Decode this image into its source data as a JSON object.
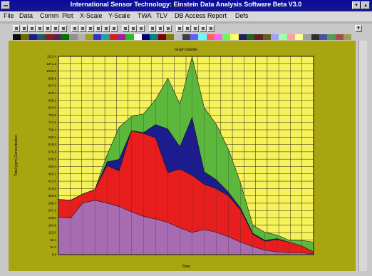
{
  "window": {
    "title": "International Sensor Technology: Einstein Data Analysis Software Beta V3.0",
    "min_glyph": "▾",
    "max_glyph": "▴"
  },
  "menu": [
    "File",
    "Data",
    "Comm",
    "Plot",
    "X-Scale",
    "Y-Scale",
    "TWA",
    "TLV",
    "DB Access",
    "Report",
    "Defs"
  ],
  "toolbar": {
    "icons": [
      "new-icon",
      "open-icon",
      "save-icon",
      "print-icon",
      "cut-icon",
      "copy-icon",
      "paste-icon",
      "chart-icon",
      "graph-icon",
      "zoom-in-icon",
      "zoom-out-icon",
      "refresh-icon",
      "grid-icon",
      "table-icon",
      "pointer-icon",
      "text-icon",
      "scale-icon",
      "window-icon",
      "list-icon",
      "help-icon",
      "export-icon",
      "import-icon",
      "config-icon",
      "exit-icon"
    ]
  },
  "palette_colors": [
    "#0a0a0a",
    "#6a6a00",
    "#1b1b8c",
    "#1e5a5a",
    "#8c1b1b",
    "#5a1e5a",
    "#007000",
    "#909090",
    "#b0b0b0",
    "#a0a020",
    "#3030d0",
    "#20a0a0",
    "#d02020",
    "#a020a0",
    "#20c020",
    "#ffffff",
    "#000080",
    "#008080",
    "#800000",
    "#808000",
    "#c0c0c0",
    "#404040",
    "#6060ff",
    "#60ffff",
    "#ff6060",
    "#ff60ff",
    "#60ff60",
    "#ffff60",
    "#202060",
    "#206020",
    "#602020",
    "#606020",
    "#a0a0ff",
    "#a0ffa0",
    "#ffa0a0",
    "#ffffa0",
    "#a0a0a0",
    "#303030",
    "#5050a0",
    "#50a050",
    "#a05050",
    "#a0a050"
  ],
  "chart_data": {
    "type": "area",
    "title": "Graph Subtitle",
    "xlabel": "Time",
    "ylabel": "Total (ppm) Concentration",
    "ylim": [
      0,
      1112.6
    ],
    "y_ticks": [
      "0.0",
      "41.2",
      "82.4",
      "123.6",
      "164.8",
      "206.0",
      "247.2",
      "288.4",
      "329.6",
      "370.8",
      "412.0",
      "453.2",
      "494.4",
      "535.6",
      "576.8",
      "618.0",
      "659.2",
      "700.4",
      "741.6",
      "782.8",
      "824.0",
      "865.2",
      "906.4",
      "947.6",
      "988.8",
      "1030.0",
      "1071.2",
      "1112.4"
    ],
    "x_count": 22,
    "stacked": true,
    "series": [
      {
        "name": "",
        "color": "#a96cb3",
        "values": [
          210,
          205,
          290,
          305,
          290,
          270,
          240,
          215,
          200,
          180,
          150,
          125,
          140,
          125,
          100,
          70,
          45,
          25,
          15,
          10,
          10,
          5
        ]
      },
      {
        "name": "",
        "color": "#e81e1e",
        "values": [
          100,
          100,
          50,
          60,
          210,
          200,
          455,
          465,
          455,
          280,
          330,
          320,
          255,
          245,
          230,
          180,
          70,
          50,
          70,
          60,
          40,
          10
        ]
      },
      {
        "name": "",
        "color": "#1c1c8f",
        "values": [
          0,
          0,
          0,
          0,
          20,
          65,
          0,
          5,
          75,
          245,
          125,
          325,
          70,
          50,
          20,
          10,
          5,
          5,
          5,
          0,
          0,
          0
        ]
      },
      {
        "name": "",
        "color": "#5cb83c",
        "values": [
          0,
          0,
          0,
          0,
          40,
          180,
          80,
          105,
          140,
          285,
          240,
          340,
          360,
          310,
          240,
          140,
          45,
          45,
          20,
          10,
          30,
          55
        ]
      }
    ]
  }
}
